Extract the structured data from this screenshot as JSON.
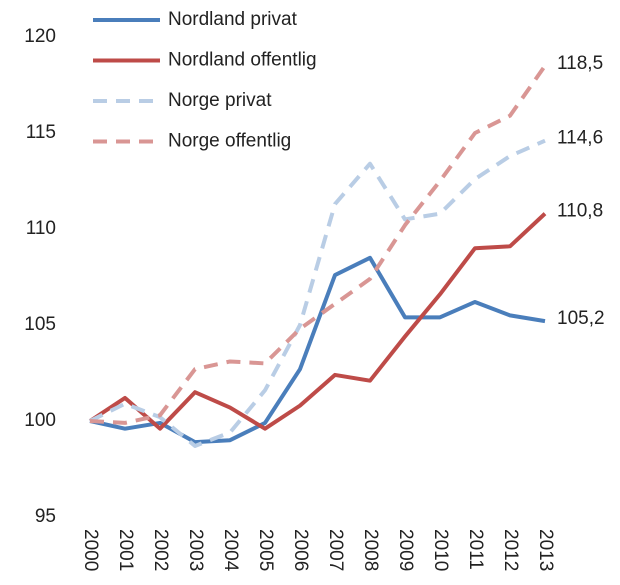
{
  "chart_data": {
    "type": "line",
    "categories": [
      "2000",
      "2001",
      "2002",
      "2003",
      "2004",
      "2005",
      "2006",
      "2007",
      "2008",
      "2009",
      "2010",
      "2011",
      "2012",
      "2013"
    ],
    "ylim": [
      95,
      120
    ],
    "yticks": [
      95,
      100,
      105,
      110,
      115,
      120
    ],
    "series": [
      {
        "name": "Nordland privat",
        "color": "#4a7ebb",
        "dash": false,
        "values": [
          100,
          99.6,
          99.9,
          98.9,
          99.0,
          99.9,
          102.7,
          107.6,
          108.5,
          105.4,
          105.4,
          106.2,
          105.5,
          105.2
        ],
        "value_labels": [
          null,
          null,
          null,
          null,
          null,
          null,
          null,
          null,
          null,
          null,
          null,
          null,
          null,
          "105,2"
        ]
      },
      {
        "name": "Nordland offentlig",
        "color": "#be4b48",
        "dash": false,
        "values": [
          100,
          101.2,
          99.6,
          101.5,
          100.7,
          99.6,
          100.8,
          102.4,
          102.1,
          104.4,
          106.6,
          109.0,
          109.1,
          110.8
        ],
        "value_labels": [
          null,
          null,
          null,
          null,
          null,
          null,
          null,
          null,
          null,
          null,
          null,
          null,
          null,
          "110,8"
        ]
      },
      {
        "name": "Norge privat",
        "color": "#b9cde5",
        "dash": true,
        "values": [
          100,
          100.9,
          100.2,
          98.7,
          99.4,
          101.6,
          105.0,
          111.3,
          113.4,
          110.5,
          110.8,
          112.6,
          113.8,
          114.6
        ],
        "value_labels": [
          null,
          null,
          null,
          null,
          null,
          null,
          null,
          null,
          null,
          null,
          null,
          null,
          null,
          "114,6"
        ]
      },
      {
        "name": "Norge offentlig",
        "color": "#d99694",
        "dash": true,
        "values": [
          100,
          99.9,
          100.3,
          102.7,
          103.1,
          103.0,
          104.8,
          106.1,
          107.4,
          110.2,
          112.5,
          115.0,
          115.9,
          118.5
        ],
        "value_labels": [
          null,
          null,
          null,
          null,
          null,
          null,
          null,
          null,
          null,
          null,
          null,
          null,
          null,
          "118,5"
        ]
      }
    ],
    "legend": "top-left"
  }
}
